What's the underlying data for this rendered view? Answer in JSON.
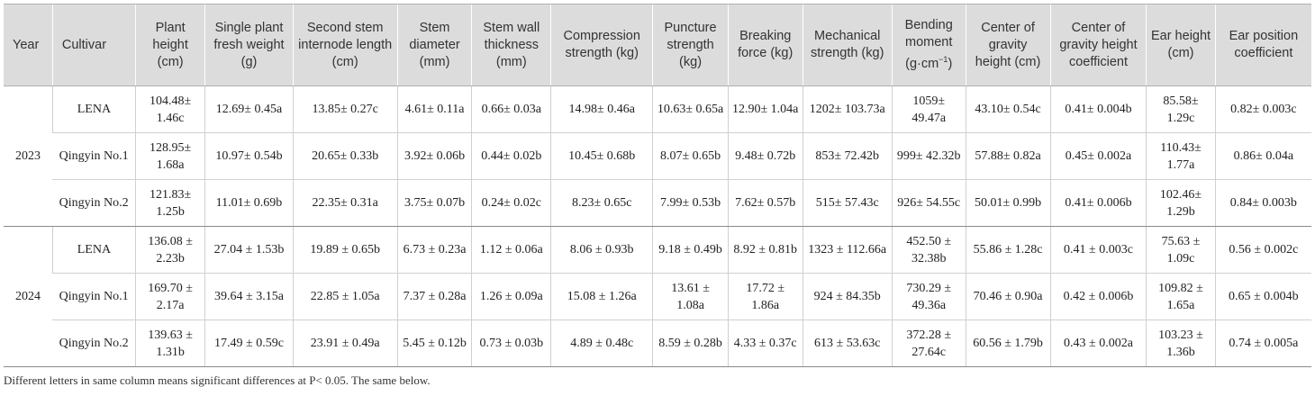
{
  "table": {
    "headers": [
      "Year",
      "Cultivar",
      "Plant height (cm)",
      "Single plant fresh weight (g)",
      "Second stem internode length (cm)",
      "Stem diameter (mm)",
      "Stem wall thickness (mm)",
      "Compression strength (kg)",
      "Puncture strength (kg)",
      "Breaking force (kg)",
      "Mechanical strength (kg)",
      "Bending moment (g·cm-1)",
      "Center of gravity height (cm)",
      "Center of gravity height coefficient",
      "Ear height (cm)",
      "Ear position coefficient"
    ],
    "header_display": {
      "bending_moment": "Bending moment",
      "bending_moment_unit": "(g·cm",
      "bending_moment_sup": "−1",
      "bending_moment_close": ")"
    },
    "groups": [
      {
        "year": "2023",
        "rows": [
          [
            "LENA",
            "104.48± 1.46c",
            "12.69± 0.45a",
            "13.85± 0.27c",
            "4.61± 0.11a",
            "0.66± 0.03a",
            "14.98± 0.46a",
            "10.63± 0.65a",
            "12.90± 1.04a",
            "1202± 103.73a",
            "1059± 49.47a",
            "43.10± 0.54c",
            "0.41± 0.004b",
            "85.58± 1.29c",
            "0.82± 0.003c"
          ],
          [
            "Qingyin No.1",
            "128.95± 1.68a",
            "10.97± 0.54b",
            "20.65± 0.33b",
            "3.92± 0.06b",
            "0.44± 0.02b",
            "10.45± 0.68b",
            "8.07± 0.65b",
            "9.48± 0.72b",
            "853± 72.42b",
            "999± 42.32b",
            "57.88± 0.82a",
            "0.45± 0.002a",
            "110.43± 1.77a",
            "0.86± 0.04a"
          ],
          [
            "Qingyin No.2",
            "121.83± 1.25b",
            "11.01± 0.69b",
            "22.35± 0.31a",
            "3.75± 0.07b",
            "0.24± 0.02c",
            "8.23± 0.65c",
            "7.99± 0.53b",
            "7.62± 0.57b",
            "515± 57.43c",
            "926± 54.55c",
            "50.01± 0.99b",
            "0.41± 0.006b",
            "102.46± 1.29b",
            "0.84± 0.003b"
          ]
        ]
      },
      {
        "year": "2024",
        "rows": [
          [
            "LENA",
            "136.08 ± 2.23b",
            "27.04 ± 1.53b",
            "19.89 ± 0.65b",
            "6.73 ± 0.23a",
            "1.12 ± 0.06a",
            "8.06 ± 0.93b",
            "9.18 ± 0.49b",
            "8.92 ± 0.81b",
            "1323 ± 112.66a",
            "452.50 ± 32.38b",
            "55.86 ± 1.28c",
            "0.41 ± 0.003c",
            "75.63 ± 1.09c",
            "0.56 ± 0.002c"
          ],
          [
            "Qingyin No.1",
            "169.70 ± 2.17a",
            "39.64 ± 3.15a",
            "22.85 ± 1.05a",
            "7.37 ± 0.28a",
            "1.26 ± 0.09a",
            "15.08 ± 1.26a",
            "13.61 ± 1.08a",
            "17.72 ± 1.86a",
            "924 ± 84.35b",
            "730.29 ± 49.36a",
            "70.46 ± 0.90a",
            "0.42 ± 0.006b",
            "109.82 ± 1.65a",
            "0.65 ± 0.004b"
          ],
          [
            "Qingyin No.2",
            "139.63 ± 1.31b",
            "17.49 ± 0.59c",
            "23.91 ± 0.49a",
            "5.45 ± 0.12b",
            "0.73 ± 0.03b",
            "4.89 ± 0.48c",
            "8.59 ± 0.28b",
            "4.33 ± 0.37c",
            "613 ± 53.63c",
            "372.28 ± 27.64c",
            "60.56 ± 1.79b",
            "0.43 ± 0.002a",
            "103.23 ± 1.36b",
            "0.74 ± 0.005a"
          ]
        ]
      }
    ]
  },
  "footnote": "Different letters in same column means significant differences at P< 0.05. The same below."
}
